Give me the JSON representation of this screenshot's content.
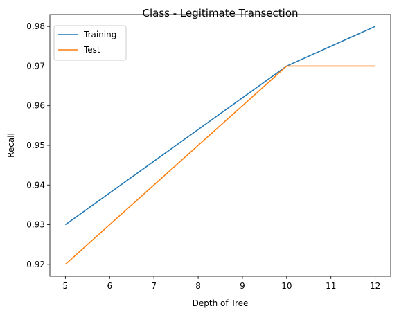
{
  "chart_data": {
    "type": "line",
    "title": "Class - Legitimate Transection",
    "xlabel": "Depth of Tree",
    "ylabel": "Recall",
    "xlim": [
      4.65,
      12.35
    ],
    "ylim": [
      0.917,
      0.983
    ],
    "xticks": [
      5,
      6,
      7,
      8,
      9,
      10,
      11,
      12
    ],
    "yticks": [
      0.92,
      0.93,
      0.94,
      0.95,
      0.96,
      0.97,
      0.98
    ],
    "ytick_labels": [
      "0.92",
      "0.93",
      "0.94",
      "0.95",
      "0.96",
      "0.97",
      "0.98"
    ],
    "grid": false,
    "legend_position": "upper-left",
    "series": [
      {
        "name": "Training",
        "color": "#1f77b4",
        "x": [
          5,
          10,
          12
        ],
        "y": [
          0.93,
          0.97,
          0.98
        ]
      },
      {
        "name": "Test",
        "color": "#ff7f0e",
        "x": [
          5,
          10,
          12
        ],
        "y": [
          0.92,
          0.97,
          0.97
        ]
      }
    ]
  }
}
